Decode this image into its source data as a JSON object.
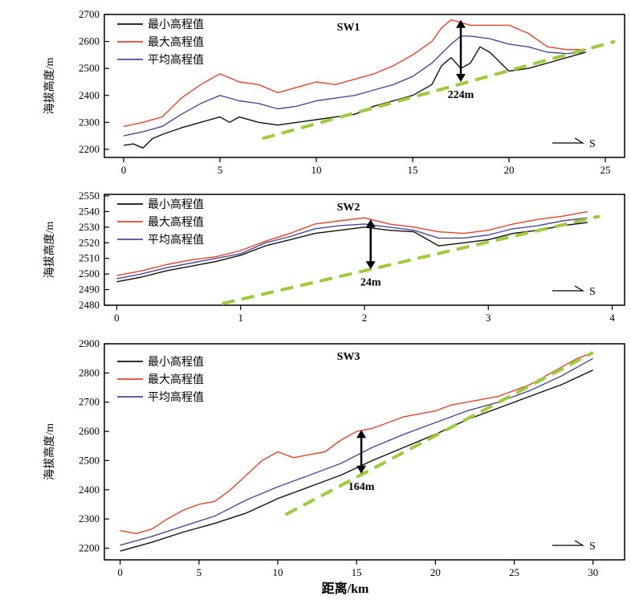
{
  "colors": {
    "min": "#111111",
    "max": "#e8432a",
    "avg": "#4a4a9c",
    "trend": "#9ccc3a",
    "arrow": "#000000"
  },
  "x_axis_label": "距离/km",
  "chart_data": [
    {
      "type": "line",
      "title": "SW1",
      "xlabel": "",
      "ylabel": "海拔高度/m",
      "xlim": [
        -1,
        26
      ],
      "ylim": [
        2170,
        2700
      ],
      "xticks": [
        0,
        5,
        10,
        15,
        20,
        25
      ],
      "yticks": [
        2200,
        2300,
        2400,
        2500,
        2600,
        2700
      ],
      "legend_position": "top-left",
      "direction_label": "S",
      "series": [
        {
          "name": "最小高程值",
          "key": "min",
          "x": [
            0,
            0.5,
            1,
            1.5,
            2,
            3,
            4,
            5,
            5.5,
            6,
            7,
            8,
            9,
            10,
            11,
            12,
            13,
            14,
            15,
            16,
            16.5,
            17,
            17.5,
            18,
            18.5,
            19,
            20,
            21,
            22,
            23,
            24
          ],
          "y": [
            2215,
            2220,
            2205,
            2240,
            2255,
            2280,
            2300,
            2320,
            2300,
            2320,
            2300,
            2290,
            2300,
            2310,
            2320,
            2330,
            2360,
            2380,
            2400,
            2440,
            2510,
            2540,
            2500,
            2520,
            2580,
            2560,
            2490,
            2500,
            2520,
            2540,
            2560
          ]
        },
        {
          "name": "最大高程值",
          "key": "max",
          "x": [
            0,
            1,
            2,
            3,
            4,
            5,
            6,
            7,
            8,
            9,
            10,
            11,
            12,
            13,
            14,
            15,
            16,
            16.5,
            17,
            17.5,
            18,
            19,
            20,
            21,
            22,
            23,
            24
          ],
          "y": [
            2285,
            2300,
            2320,
            2390,
            2440,
            2480,
            2450,
            2440,
            2410,
            2430,
            2450,
            2440,
            2460,
            2480,
            2510,
            2550,
            2600,
            2650,
            2680,
            2670,
            2660,
            2660,
            2660,
            2630,
            2580,
            2570,
            2570
          ]
        },
        {
          "name": "平均高程值",
          "key": "avg",
          "x": [
            0,
            1,
            2,
            3,
            4,
            5,
            6,
            7,
            8,
            9,
            10,
            11,
            12,
            13,
            14,
            15,
            16,
            17,
            17.5,
            18,
            19,
            20,
            21,
            22,
            23,
            24
          ],
          "y": [
            2250,
            2265,
            2285,
            2330,
            2370,
            2400,
            2380,
            2370,
            2350,
            2360,
            2380,
            2390,
            2400,
            2420,
            2440,
            2470,
            2520,
            2590,
            2620,
            2620,
            2610,
            2590,
            2580,
            2560,
            2555,
            2560
          ]
        },
        {
          "name": "",
          "key": "trend",
          "dashed": true,
          "x": [
            7.2,
            25.5
          ],
          "y": [
            2240,
            2600
          ]
        }
      ],
      "annotation": {
        "text": "224m",
        "x": 17.5,
        "y_top": 2680,
        "y_bottom": 2450
      }
    },
    {
      "type": "line",
      "title": "SW2",
      "xlabel": "",
      "ylabel": "海拔高度/m",
      "xlim": [
        -0.1,
        4.1
      ],
      "ylim": [
        2480,
        2551
      ],
      "xticks": [
        0,
        1,
        2,
        3,
        4
      ],
      "yticks": [
        2480,
        2490,
        2500,
        2510,
        2520,
        2530,
        2540,
        2550
      ],
      "legend_position": "top-left",
      "direction_label": "S",
      "series": [
        {
          "name": "最小高程值",
          "key": "min",
          "x": [
            0,
            0.2,
            0.4,
            0.6,
            0.8,
            1.0,
            1.2,
            1.4,
            1.6,
            1.8,
            2.0,
            2.2,
            2.4,
            2.6,
            2.8,
            3.0,
            3.2,
            3.4,
            3.6,
            3.8
          ],
          "y": [
            2495,
            2498,
            2502,
            2505,
            2508,
            2512,
            2518,
            2522,
            2526,
            2528,
            2530,
            2528,
            2527,
            2518,
            2520,
            2522,
            2526,
            2528,
            2531,
            2533
          ]
        },
        {
          "name": "最大高程值",
          "key": "max",
          "x": [
            0,
            0.2,
            0.4,
            0.6,
            0.8,
            1.0,
            1.2,
            1.4,
            1.6,
            1.8,
            2.0,
            2.2,
            2.4,
            2.6,
            2.8,
            3.0,
            3.2,
            3.4,
            3.6,
            3.8
          ],
          "y": [
            2499,
            2502,
            2506,
            2509,
            2511,
            2515,
            2521,
            2526,
            2532,
            2534,
            2536,
            2532,
            2530,
            2527,
            2526,
            2528,
            2532,
            2535,
            2537,
            2540
          ]
        },
        {
          "name": "平均高程值",
          "key": "avg",
          "x": [
            0,
            0.2,
            0.4,
            0.6,
            0.8,
            1.0,
            1.2,
            1.4,
            1.6,
            1.8,
            2.0,
            2.2,
            2.4,
            2.6,
            2.8,
            3.0,
            3.2,
            3.4,
            3.6,
            3.8
          ],
          "y": [
            2497,
            2500,
            2504,
            2507,
            2510,
            2513,
            2520,
            2524,
            2529,
            2531,
            2532,
            2530,
            2528,
            2523,
            2523,
            2525,
            2529,
            2531,
            2534,
            2536
          ]
        },
        {
          "name": "",
          "key": "trend",
          "dashed": true,
          "x": [
            0.85,
            3.9
          ],
          "y": [
            2481,
            2537
          ]
        }
      ],
      "annotation": {
        "text": "24m",
        "x": 2.05,
        "y_top": 2535,
        "y_bottom": 2503
      }
    },
    {
      "type": "line",
      "title": "SW3",
      "xlabel": "距离/km",
      "ylabel": "海拔高度/m",
      "xlim": [
        -1,
        32
      ],
      "ylim": [
        2160,
        2900
      ],
      "xticks": [
        0,
        5,
        10,
        15,
        20,
        25,
        30
      ],
      "yticks": [
        2200,
        2300,
        2400,
        2500,
        2600,
        2700,
        2800,
        2900
      ],
      "legend_position": "top-left",
      "direction_label": "S",
      "series": [
        {
          "name": "最小高程值",
          "key": "min",
          "x": [
            0,
            2,
            4,
            6,
            8,
            10,
            12,
            14,
            16,
            18,
            20,
            22,
            24,
            26,
            28,
            30
          ],
          "y": [
            2190,
            2220,
            2255,
            2285,
            2320,
            2370,
            2410,
            2450,
            2500,
            2545,
            2590,
            2640,
            2680,
            2720,
            2760,
            2810
          ]
        },
        {
          "name": "最大高程值",
          "key": "max",
          "x": [
            0,
            1,
            2,
            3,
            4,
            5,
            6,
            7,
            8,
            9,
            10,
            11,
            12,
            13,
            14,
            15,
            16,
            17,
            18,
            19,
            20,
            21,
            22,
            23,
            24,
            25,
            26,
            27,
            28,
            29,
            30
          ],
          "y": [
            2260,
            2250,
            2265,
            2300,
            2330,
            2350,
            2360,
            2400,
            2450,
            2500,
            2530,
            2510,
            2520,
            2530,
            2570,
            2600,
            2610,
            2630,
            2650,
            2660,
            2670,
            2690,
            2700,
            2710,
            2720,
            2740,
            2760,
            2790,
            2820,
            2850,
            2870
          ]
        },
        {
          "name": "平均高程值",
          "key": "avg",
          "x": [
            0,
            2,
            4,
            6,
            8,
            10,
            12,
            14,
            16,
            18,
            20,
            22,
            24,
            26,
            28,
            30
          ],
          "y": [
            2210,
            2240,
            2275,
            2310,
            2365,
            2410,
            2450,
            2490,
            2545,
            2590,
            2630,
            2670,
            2700,
            2740,
            2790,
            2850
          ]
        },
        {
          "name": "",
          "key": "trend",
          "dashed": true,
          "x": [
            10.5,
            30
          ],
          "y": [
            2315,
            2870
          ]
        }
      ],
      "annotation": {
        "text": "164m",
        "x": 15.3,
        "y_top": 2605,
        "y_bottom": 2455
      }
    }
  ]
}
